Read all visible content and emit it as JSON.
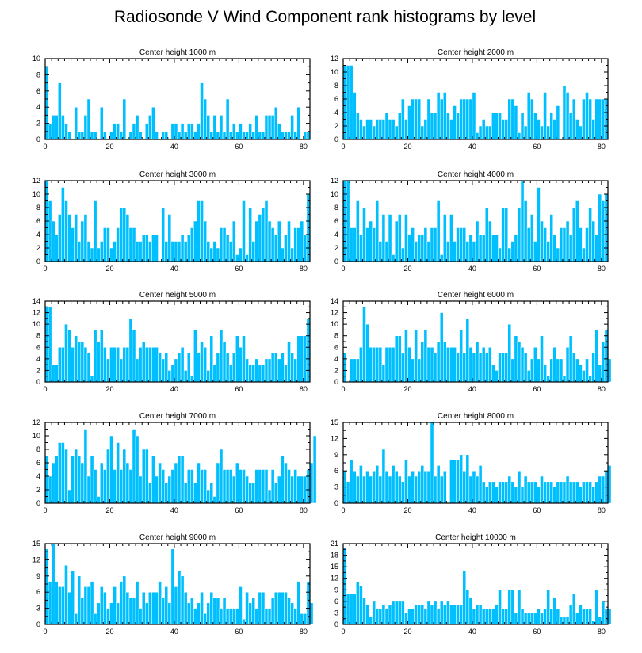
{
  "figure_title": "Radiosonde V Wind Component rank histograms by level",
  "chart_data": [
    {
      "type": "bar",
      "title": "Center height 1000 m",
      "xlabel": "",
      "ylabel": "",
      "xlim": [
        0,
        82
      ],
      "ylim": [
        0,
        10
      ],
      "xticks": [
        0,
        20,
        40,
        60,
        80
      ],
      "yticks": [
        0,
        2,
        4,
        6,
        8,
        10
      ],
      "values": [
        9,
        2,
        3,
        3,
        7,
        3,
        2,
        1,
        0,
        4,
        1,
        1,
        3,
        5,
        1,
        1,
        0,
        4,
        1,
        0,
        1,
        2,
        2,
        1,
        5,
        0,
        1,
        2,
        3,
        1,
        0,
        2,
        3,
        4,
        1,
        0,
        1,
        1,
        0,
        2,
        2,
        1,
        2,
        1,
        2,
        2,
        1,
        2,
        7,
        5,
        3,
        1,
        3,
        1,
        3,
        1,
        5,
        1,
        2,
        1,
        2,
        1,
        1,
        2,
        1,
        3,
        1,
        1,
        3,
        3,
        3,
        4,
        2,
        1,
        1,
        1,
        3,
        1,
        4,
        0,
        1,
        1
      ],
      "bar_color": "#00bfff"
    },
    {
      "type": "bar",
      "title": "Center height 2000 m",
      "xlabel": "",
      "ylabel": "",
      "xlim": [
        0,
        82
      ],
      "ylim": [
        0,
        12
      ],
      "xticks": [
        0,
        20,
        40,
        60,
        80
      ],
      "yticks": [
        0,
        2,
        4,
        6,
        8,
        10,
        12
      ],
      "values": [
        11,
        11,
        11,
        7,
        4,
        3,
        2,
        3,
        3,
        2,
        3,
        3,
        3,
        4,
        3,
        3,
        2,
        4,
        6,
        3,
        5,
        6,
        6,
        6,
        2,
        3,
        6,
        4,
        4,
        7,
        6,
        7,
        4,
        3,
        5,
        4,
        6,
        6,
        6,
        6,
        7,
        1,
        2,
        3,
        2,
        2,
        4,
        4,
        4,
        3,
        3,
        6,
        6,
        5,
        1,
        4,
        2,
        7,
        6,
        4,
        3,
        2,
        7,
        2,
        4,
        3,
        5,
        0,
        8,
        7,
        4,
        6,
        3,
        2,
        6,
        7,
        6,
        3,
        6,
        6,
        6,
        6
      ],
      "bar_color": "#00bfff"
    },
    {
      "type": "bar",
      "title": "Center height 3000 m",
      "xlabel": "",
      "ylabel": "",
      "xlim": [
        0,
        82
      ],
      "ylim": [
        0,
        12
      ],
      "xticks": [
        0,
        20,
        40,
        60,
        80
      ],
      "yticks": [
        0,
        2,
        4,
        6,
        8,
        10,
        12
      ],
      "values": [
        12,
        9,
        6,
        4,
        7,
        11,
        9,
        7,
        5,
        7,
        3,
        6,
        7,
        3,
        2,
        9,
        2,
        3,
        5,
        5,
        2,
        3,
        5,
        8,
        8,
        7,
        5,
        5,
        3,
        3,
        4,
        4,
        3,
        4,
        4,
        0,
        8,
        3,
        7,
        3,
        3,
        3,
        4,
        3,
        4,
        5,
        6,
        9,
        9,
        6,
        3,
        2,
        3,
        2,
        5,
        5,
        4,
        3,
        6,
        1,
        2,
        9,
        1,
        8,
        3,
        6,
        7,
        8,
        9,
        6,
        5,
        4,
        6,
        2,
        4,
        6,
        2,
        5,
        5,
        6,
        4,
        10
      ],
      "bar_color": "#00bfff"
    },
    {
      "type": "bar",
      "title": "Center height 4000 m",
      "xlabel": "",
      "ylabel": "",
      "xlim": [
        0,
        82
      ],
      "ylim": [
        0,
        12
      ],
      "xticks": [
        0,
        20,
        40,
        60,
        80
      ],
      "yticks": [
        0,
        2,
        4,
        6,
        8,
        10,
        12
      ],
      "values": [
        12,
        12,
        5,
        5,
        9,
        4,
        8,
        5,
        6,
        5,
        9,
        3,
        7,
        3,
        7,
        1,
        6,
        7,
        2,
        7,
        4,
        5,
        3,
        4,
        4,
        5,
        3,
        5,
        5,
        9,
        1,
        7,
        3,
        7,
        3,
        5,
        5,
        5,
        3,
        4,
        3,
        6,
        4,
        4,
        8,
        6,
        4,
        4,
        2,
        8,
        8,
        2,
        3,
        4,
        8,
        12,
        9,
        5,
        7,
        3,
        11,
        6,
        5,
        3,
        7,
        4,
        2,
        5,
        5,
        6,
        4,
        8,
        9,
        5,
        2,
        5,
        8,
        6,
        4,
        10,
        9,
        10
      ],
      "bar_color": "#00bfff"
    },
    {
      "type": "bar",
      "title": "Center height 5000 m",
      "xlabel": "",
      "ylabel": "",
      "xlim": [
        0,
        82
      ],
      "ylim": [
        0,
        14
      ],
      "xticks": [
        0,
        20,
        40,
        60,
        80
      ],
      "yticks": [
        0,
        2,
        4,
        6,
        8,
        10,
        12,
        14
      ],
      "values": [
        13,
        13,
        3,
        3,
        6,
        6,
        10,
        9,
        6,
        8,
        7,
        7,
        6,
        5,
        1,
        9,
        7,
        9,
        6,
        4,
        6,
        6,
        6,
        4,
        6,
        6,
        11,
        9,
        4,
        6,
        7,
        6,
        6,
        6,
        6,
        5,
        4,
        5,
        2,
        3,
        4,
        5,
        6,
        2,
        5,
        1,
        9,
        5,
        7,
        6,
        2,
        8,
        3,
        5,
        9,
        7,
        5,
        3,
        5,
        8,
        6,
        8,
        4,
        3,
        3,
        4,
        3,
        3,
        4,
        4,
        5,
        5,
        4,
        5,
        3,
        7,
        5,
        4,
        8,
        8,
        8,
        11
      ],
      "bar_color": "#00bfff"
    },
    {
      "type": "bar",
      "title": "Center height 6000 m",
      "xlabel": "",
      "ylabel": "",
      "xlim": [
        0,
        82
      ],
      "ylim": [
        0,
        14
      ],
      "xticks": [
        0,
        20,
        40,
        60,
        80
      ],
      "yticks": [
        0,
        2,
        4,
        6,
        8,
        10,
        12,
        14
      ],
      "values": [
        5,
        0,
        4,
        4,
        4,
        6,
        13,
        10,
        6,
        6,
        6,
        6,
        3,
        6,
        6,
        6,
        8,
        8,
        5,
        9,
        6,
        4,
        9,
        4,
        7,
        9,
        6,
        6,
        5,
        7,
        12,
        7,
        6,
        6,
        6,
        5,
        9,
        5,
        11,
        6,
        5,
        7,
        5,
        6,
        5,
        6,
        3,
        2,
        5,
        5,
        5,
        10,
        4,
        8,
        7,
        6,
        5,
        2,
        4,
        6,
        4,
        8,
        3,
        1,
        4,
        6,
        4,
        4,
        1,
        6,
        8,
        5,
        4,
        3,
        2,
        4,
        1,
        5,
        9,
        3,
        7,
        9,
        4
      ],
      "bar_color": "#00bfff"
    },
    {
      "type": "bar",
      "title": "Center height 7000 m",
      "xlabel": "",
      "ylabel": "",
      "xlim": [
        0,
        82
      ],
      "ylim": [
        0,
        12
      ],
      "xticks": [
        0,
        20,
        40,
        60,
        80
      ],
      "yticks": [
        0,
        2,
        4,
        6,
        8,
        10,
        12
      ],
      "values": [
        7,
        4,
        6,
        7,
        9,
        9,
        8,
        2,
        7,
        8,
        7,
        6,
        11,
        4,
        7,
        5,
        1,
        6,
        5,
        8,
        10,
        5,
        9,
        5,
        8,
        6,
        5,
        11,
        10,
        4,
        8,
        8,
        3,
        7,
        4,
        6,
        5,
        3,
        4,
        5,
        6,
        7,
        7,
        3,
        5,
        5,
        3,
        6,
        5,
        5,
        2,
        3,
        1,
        6,
        8,
        5,
        5,
        5,
        4,
        6,
        5,
        5,
        4,
        3,
        3,
        5,
        5,
        5,
        5,
        2,
        5,
        3,
        4,
        7,
        6,
        5,
        4,
        5,
        4,
        4,
        4,
        5,
        6,
        10
      ],
      "bar_color": "#00bfff"
    },
    {
      "type": "bar",
      "title": "Center height 8000 m",
      "xlabel": "",
      "ylabel": "",
      "xlim": [
        0,
        82
      ],
      "ylim": [
        0,
        15
      ],
      "xticks": [
        0,
        20,
        40,
        60,
        80
      ],
      "yticks": [
        0,
        3,
        6,
        9,
        12,
        15
      ],
      "values": [
        6,
        4,
        8,
        6,
        5,
        7,
        5,
        6,
        5,
        6,
        7,
        5,
        10,
        6,
        5,
        7,
        6,
        5,
        4,
        8,
        5,
        6,
        5,
        6,
        7,
        6,
        6,
        15,
        5,
        7,
        5,
        6,
        0,
        8,
        8,
        8,
        9,
        6,
        9,
        5,
        6,
        5,
        7,
        4,
        3,
        4,
        4,
        3,
        4,
        4,
        4,
        5,
        4,
        3,
        6,
        3,
        5,
        4,
        4,
        4,
        3,
        5,
        4,
        4,
        4,
        3,
        4,
        4,
        4,
        5,
        4,
        4,
        4,
        3,
        4,
        4,
        4,
        3,
        4,
        5,
        5,
        6,
        7
      ],
      "bar_color": "#00bfff"
    },
    {
      "type": "bar",
      "title": "Center height 9000 m",
      "xlabel": "",
      "ylabel": "",
      "xlim": [
        0,
        82
      ],
      "ylim": [
        0,
        15
      ],
      "xticks": [
        0,
        20,
        40,
        60,
        80
      ],
      "yticks": [
        0,
        3,
        6,
        9,
        12,
        15
      ],
      "values": [
        14,
        8,
        15,
        8,
        7,
        7,
        11,
        6,
        10,
        2,
        9,
        5,
        7,
        7,
        8,
        2,
        4,
        7,
        6,
        3,
        4,
        7,
        4,
        8,
        9,
        6,
        5,
        5,
        8,
        3,
        6,
        4,
        6,
        6,
        6,
        8,
        5,
        7,
        4,
        14,
        7,
        10,
        9,
        6,
        4,
        5,
        3,
        4,
        6,
        2,
        4,
        6,
        5,
        5,
        3,
        5,
        3,
        3,
        3,
        3,
        7,
        1,
        6,
        4,
        5,
        3,
        6,
        6,
        3,
        3,
        5,
        6,
        6,
        6,
        6,
        5,
        4,
        3,
        8,
        2,
        2,
        8,
        4
      ],
      "bar_color": "#00bfff"
    },
    {
      "type": "bar",
      "title": "Center height 10000 m",
      "xlabel": "",
      "ylabel": "",
      "xlim": [
        0,
        82
      ],
      "ylim": [
        0,
        21
      ],
      "xticks": [
        0,
        20,
        40,
        60,
        80
      ],
      "yticks": [
        0,
        3,
        6,
        9,
        12,
        15,
        18,
        21
      ],
      "values": [
        20,
        8,
        8,
        8,
        11,
        10,
        7,
        5,
        2,
        6,
        4,
        4,
        5,
        4,
        5,
        6,
        6,
        6,
        6,
        3,
        4,
        4,
        5,
        5,
        5,
        4,
        6,
        5,
        6,
        4,
        6,
        5,
        6,
        5,
        5,
        5,
        5,
        14,
        9,
        7,
        4,
        5,
        5,
        4,
        4,
        4,
        4,
        5,
        9,
        4,
        4,
        9,
        9,
        3,
        9,
        4,
        3,
        3,
        3,
        3,
        4,
        3,
        4,
        9,
        4,
        7,
        4,
        2,
        2,
        2,
        5,
        8,
        3,
        5,
        4,
        4,
        4,
        1,
        9,
        2,
        6,
        4,
        4
      ],
      "bar_color": "#00bfff"
    }
  ]
}
